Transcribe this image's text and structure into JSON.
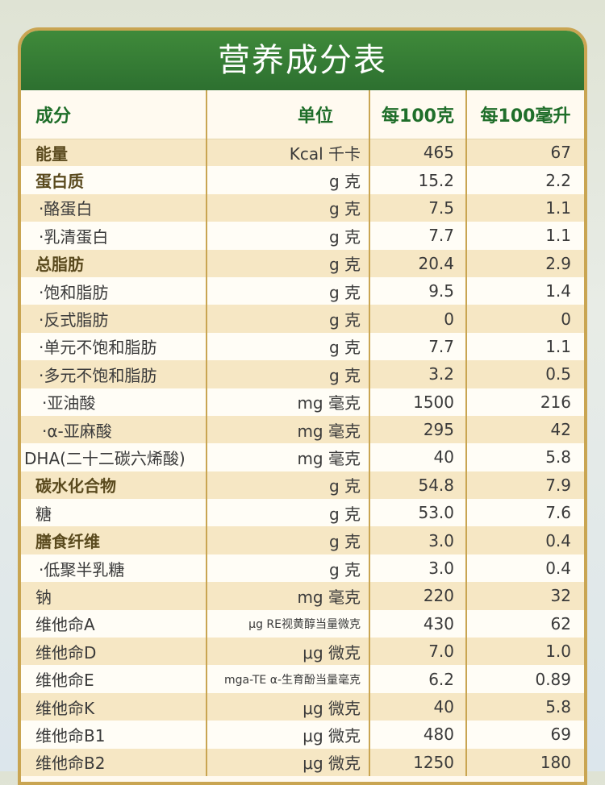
{
  "title": "营养成分表",
  "headers": {
    "name": "成分",
    "unit": "单位",
    "per100g": "每100克",
    "per100ml": "每100毫升"
  },
  "rows": [
    {
      "name": "能量",
      "unit": "Kcal 千卡",
      "per100g": "465",
      "per100ml": "67"
    },
    {
      "name": "蛋白质",
      "unit": "g 克",
      "per100g": "15.2",
      "per100ml": "2.2"
    },
    {
      "name": "·酪蛋白",
      "unit": "g 克",
      "per100g": "7.5",
      "per100ml": "1.1"
    },
    {
      "name": "·乳清蛋白",
      "unit": "g 克",
      "per100g": "7.7",
      "per100ml": "1.1"
    },
    {
      "name": "总脂肪",
      "unit": "g 克",
      "per100g": "20.4",
      "per100ml": "2.9"
    },
    {
      "name": "·饱和脂肪",
      "unit": "g 克",
      "per100g": "9.5",
      "per100ml": "1.4"
    },
    {
      "name": "·反式脂肪",
      "unit": "g 克",
      "per100g": "0",
      "per100ml": "0"
    },
    {
      "name": "·单元不饱和脂肪",
      "unit": "g 克",
      "per100g": "7.7",
      "per100ml": "1.1"
    },
    {
      "name": "·多元不饱和脂肪",
      "unit": "g 克",
      "per100g": "3.2",
      "per100ml": "0.5"
    },
    {
      "name": "·亚油酸",
      "unit": "mg 毫克",
      "per100g": "1500",
      "per100ml": "216"
    },
    {
      "name": "·α-亚麻酸",
      "unit": "mg 毫克",
      "per100g": "295",
      "per100ml": "42"
    },
    {
      "name": "DHA(二十二碳六烯酸)",
      "unit": "mg 毫克",
      "per100g": "40",
      "per100ml": "5.8"
    },
    {
      "name": "碳水化合物",
      "unit": "g 克",
      "per100g": "54.8",
      "per100ml": "7.9"
    },
    {
      "name": "糖",
      "unit": "g 克",
      "per100g": "53.0",
      "per100ml": "7.6"
    },
    {
      "name": "膳食纤维",
      "unit": "g 克",
      "per100g": "3.0",
      "per100ml": "0.4"
    },
    {
      "name": "·低聚半乳糖",
      "unit": "g 克",
      "per100g": "3.0",
      "per100ml": "0.4"
    },
    {
      "name": "钠",
      "unit": "mg 毫克",
      "per100g": "220",
      "per100ml": "32"
    },
    {
      "name": "维他命A",
      "unit": "μg RE视黄醇当量微克",
      "per100g": "430",
      "per100ml": "62"
    },
    {
      "name": "维他命D",
      "unit": "μg 微克",
      "per100g": "7.0",
      "per100ml": "1.0"
    },
    {
      "name": "维他命E",
      "unit": "mga-TE α-生育酚当量毫克",
      "per100g": "6.2",
      "per100ml": "0.89"
    },
    {
      "name": "维他命K",
      "unit": "μg 微克",
      "per100g": "40",
      "per100ml": "5.8"
    },
    {
      "name": "维他命B1",
      "unit": "μg 微克",
      "per100g": "480",
      "per100ml": "69"
    },
    {
      "name": "维他命B2",
      "unit": "μg 微克",
      "per100g": "1250",
      "per100ml": "180"
    }
  ]
}
